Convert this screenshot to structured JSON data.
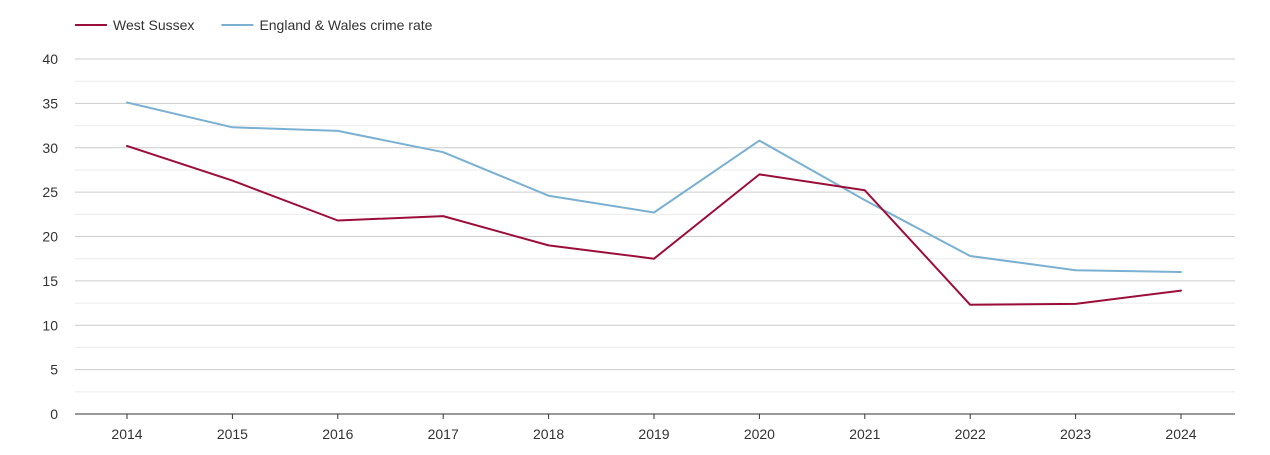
{
  "chart_data": {
    "type": "line",
    "title": "",
    "xlabel": "",
    "ylabel": "",
    "categories": [
      "2014",
      "2015",
      "2016",
      "2017",
      "2018",
      "2019",
      "2020",
      "2021",
      "2022",
      "2023",
      "2024"
    ],
    "ylim": [
      0,
      40
    ],
    "yticks": [
      0,
      5,
      10,
      15,
      20,
      25,
      30,
      35,
      40
    ],
    "grid": true,
    "legend_position": "top-left",
    "series": [
      {
        "name": "West Sussex",
        "color": "#9b0e3a",
        "values": [
          30.2,
          26.3,
          21.8,
          22.3,
          19.0,
          17.5,
          27.0,
          25.2,
          12.3,
          12.4,
          13.9
        ]
      },
      {
        "name": "England & Wales crime rate",
        "color": "#7ab0d2",
        "values": [
          35.1,
          32.3,
          31.9,
          29.5,
          24.6,
          22.7,
          30.8,
          24.1,
          17.8,
          16.2,
          16.0
        ]
      }
    ]
  }
}
